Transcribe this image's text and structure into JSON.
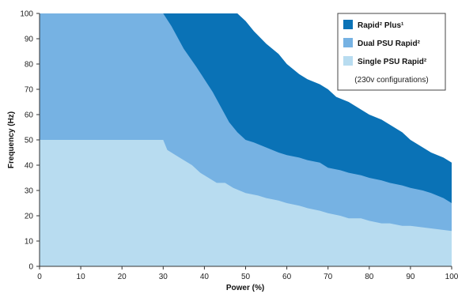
{
  "chart_data": {
    "type": "area",
    "xlabel": "Power (%)",
    "ylabel": "Frequency (Hz)",
    "xlim": [
      0,
      100
    ],
    "ylim": [
      0,
      100
    ],
    "x_ticks": [
      "0",
      "10",
      "20",
      "30",
      "40",
      "50",
      "60",
      "70",
      "80",
      "90",
      "100"
    ],
    "y_ticks": [
      "0",
      "10",
      "20",
      "30",
      "40",
      "50",
      "60",
      "70",
      "80",
      "90",
      "100"
    ],
    "legend_position": "top-right",
    "legend_note": "(230v configurations)",
    "series": [
      {
        "name": "Rapid² Plus¹",
        "color": "#0a72b6",
        "points": [
          [
            0,
            100
          ],
          [
            48,
            100
          ],
          [
            50,
            97
          ],
          [
            52,
            93
          ],
          [
            55,
            88
          ],
          [
            58,
            84
          ],
          [
            60,
            80
          ],
          [
            63,
            76
          ],
          [
            65,
            74
          ],
          [
            68,
            72
          ],
          [
            70,
            70
          ],
          [
            72,
            67
          ],
          [
            75,
            65
          ],
          [
            78,
            62
          ],
          [
            80,
            60
          ],
          [
            83,
            58
          ],
          [
            85,
            56
          ],
          [
            88,
            53
          ],
          [
            90,
            50
          ],
          [
            92,
            48
          ],
          [
            95,
            45
          ],
          [
            98,
            43
          ],
          [
            100,
            41
          ]
        ]
      },
      {
        "name": "Dual PSU Rapid²",
        "color": "#76b2e3",
        "points": [
          [
            0,
            100
          ],
          [
            30,
            100
          ],
          [
            32,
            95
          ],
          [
            35,
            86
          ],
          [
            38,
            79
          ],
          [
            40,
            74
          ],
          [
            42,
            69
          ],
          [
            44,
            63
          ],
          [
            46,
            57
          ],
          [
            48,
            53
          ],
          [
            50,
            50
          ],
          [
            52,
            49
          ],
          [
            55,
            47
          ],
          [
            58,
            45
          ],
          [
            60,
            44
          ],
          [
            63,
            43
          ],
          [
            65,
            42
          ],
          [
            68,
            41
          ],
          [
            70,
            39
          ],
          [
            73,
            38
          ],
          [
            75,
            37
          ],
          [
            78,
            36
          ],
          [
            80,
            35
          ],
          [
            83,
            34
          ],
          [
            85,
            33
          ],
          [
            88,
            32
          ],
          [
            90,
            31
          ],
          [
            93,
            30
          ],
          [
            95,
            29
          ],
          [
            98,
            27
          ],
          [
            100,
            25
          ]
        ]
      },
      {
        "name": "Single PSU Rapid²",
        "color": "#b8dcf0",
        "points": [
          [
            0,
            50
          ],
          [
            30,
            50
          ],
          [
            31,
            46
          ],
          [
            33,
            44
          ],
          [
            35,
            42
          ],
          [
            37,
            40
          ],
          [
            39,
            37
          ],
          [
            41,
            35
          ],
          [
            43,
            33
          ],
          [
            45,
            33
          ],
          [
            47,
            31
          ],
          [
            50,
            29
          ],
          [
            53,
            28
          ],
          [
            55,
            27
          ],
          [
            58,
            26
          ],
          [
            60,
            25
          ],
          [
            63,
            24
          ],
          [
            65,
            23
          ],
          [
            68,
            22
          ],
          [
            70,
            21
          ],
          [
            73,
            20
          ],
          [
            75,
            19
          ],
          [
            78,
            19
          ],
          [
            80,
            18
          ],
          [
            83,
            17
          ],
          [
            85,
            17
          ],
          [
            88,
            16
          ],
          [
            90,
            16
          ],
          [
            95,
            15
          ],
          [
            100,
            14
          ]
        ]
      }
    ]
  }
}
